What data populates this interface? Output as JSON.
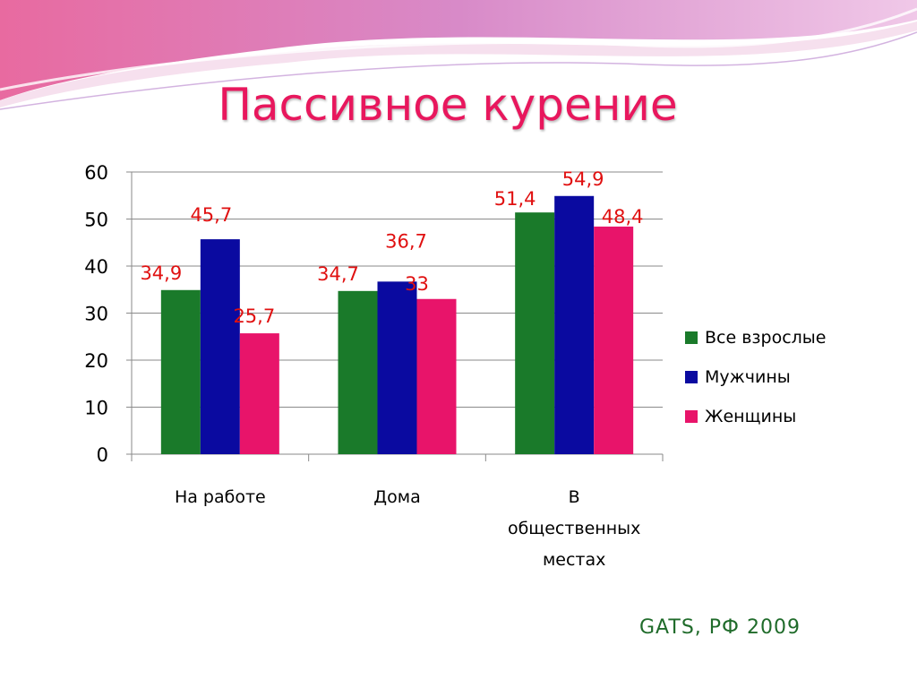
{
  "title": "Пассивное курение",
  "source": "GATS, РФ 2009",
  "colors": {
    "accent": "#e8175d",
    "series": [
      "#1a7a2a",
      "#0a0aa0",
      "#e8146a"
    ],
    "data_label": "#e01010",
    "source_text": "#1f6b2a"
  },
  "chart_data": {
    "type": "bar",
    "title": "",
    "xlabel": "",
    "ylabel": "",
    "ylim": [
      0,
      60
    ],
    "yticks": [
      0,
      10,
      20,
      30,
      40,
      50,
      60
    ],
    "categories": [
      [
        "На работе"
      ],
      [
        "Дома"
      ],
      [
        "В",
        "общественных",
        "местах"
      ]
    ],
    "series": [
      {
        "name": "Все взрослые",
        "values": [
          34.9,
          34.7,
          51.4
        ],
        "labels": [
          "34,9",
          "34,7",
          "51,4"
        ]
      },
      {
        "name": "Мужчины",
        "values": [
          45.7,
          36.7,
          54.9
        ],
        "labels": [
          "45,7",
          "36,7",
          "54,9"
        ]
      },
      {
        "name": "Женщины",
        "values": [
          25.7,
          33,
          48.4
        ],
        "labels": [
          "25,7",
          "33",
          "48,4"
        ]
      }
    ],
    "grid": true,
    "legend_position": "right"
  }
}
